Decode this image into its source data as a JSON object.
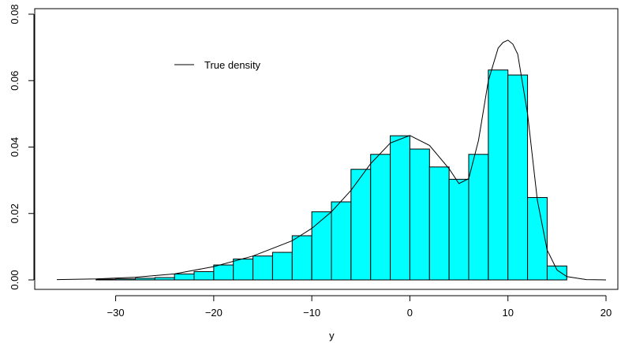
{
  "chart_data": {
    "type": "bar",
    "title": "",
    "xlabel": "y",
    "ylabel": "",
    "xlim": [
      -36,
      20
    ],
    "ylim": [
      0,
      0.08
    ],
    "grid": false,
    "colors": {
      "bars": "#00FFFF",
      "bar_border": "#000000",
      "line": "#000000"
    },
    "x_ticks": [
      {
        "value": -30,
        "label": "−30"
      },
      {
        "value": -20,
        "label": "−20"
      },
      {
        "value": -10,
        "label": "−10"
      },
      {
        "value": 0,
        "label": "0"
      },
      {
        "value": 10,
        "label": "10"
      },
      {
        "value": 20,
        "label": "20"
      }
    ],
    "y_ticks": [
      {
        "value": 0,
        "label": "0.00"
      },
      {
        "value": 0.02,
        "label": "0.02"
      },
      {
        "value": 0.04,
        "label": "0.04"
      },
      {
        "value": 0.06,
        "label": "0.06"
      },
      {
        "value": 0.08,
        "label": "0.08"
      }
    ],
    "histogram": {
      "bin_width": 2,
      "bins": [
        {
          "start": -36,
          "density": 0.0
        },
        {
          "start": -34,
          "density": 0.0
        },
        {
          "start": -32,
          "density": 0.0002
        },
        {
          "start": -30,
          "density": 0.0003
        },
        {
          "start": -28,
          "density": 0.0005
        },
        {
          "start": -26,
          "density": 0.0007
        },
        {
          "start": -24,
          "density": 0.0018
        },
        {
          "start": -22,
          "density": 0.0025
        },
        {
          "start": -20,
          "density": 0.0045
        },
        {
          "start": -18,
          "density": 0.0063
        },
        {
          "start": -16,
          "density": 0.0072
        },
        {
          "start": -14,
          "density": 0.0083
        },
        {
          "start": -12,
          "density": 0.0133
        },
        {
          "start": -10,
          "density": 0.0205
        },
        {
          "start": -8,
          "density": 0.0235
        },
        {
          "start": -6,
          "density": 0.0333
        },
        {
          "start": -4,
          "density": 0.0378
        },
        {
          "start": -2,
          "density": 0.0434
        },
        {
          "start": 0,
          "density": 0.0394
        },
        {
          "start": 2,
          "density": 0.034
        },
        {
          "start": 4,
          "density": 0.0303
        },
        {
          "start": 6,
          "density": 0.0378
        },
        {
          "start": 8,
          "density": 0.0632
        },
        {
          "start": 10,
          "density": 0.0617
        },
        {
          "start": 12,
          "density": 0.0248
        },
        {
          "start": 14,
          "density": 0.0042
        },
        {
          "start": 16,
          "density": 0.0
        },
        {
          "start": 18,
          "density": 0.0
        }
      ]
    },
    "series": [
      {
        "name": "True density",
        "type": "line",
        "x": [
          -36,
          -32,
          -28,
          -24,
          -20,
          -16,
          -12,
          -10,
          -8,
          -6,
          -4,
          -2,
          0,
          2,
          4,
          5,
          6,
          7,
          8,
          9,
          9.5,
          10,
          10.5,
          11,
          12,
          13,
          14,
          15,
          16,
          18,
          20
        ],
        "y": [
          0.0001,
          0.0003,
          0.0008,
          0.0018,
          0.004,
          0.0072,
          0.0118,
          0.0155,
          0.0205,
          0.027,
          0.035,
          0.0412,
          0.0435,
          0.0405,
          0.0335,
          0.029,
          0.0305,
          0.042,
          0.06,
          0.0698,
          0.0715,
          0.0722,
          0.071,
          0.068,
          0.05,
          0.024,
          0.009,
          0.003,
          0.001,
          0.0001,
          0.0
        ]
      }
    ],
    "legend": {
      "placement": "top-left",
      "entries": [
        "True density"
      ]
    }
  }
}
